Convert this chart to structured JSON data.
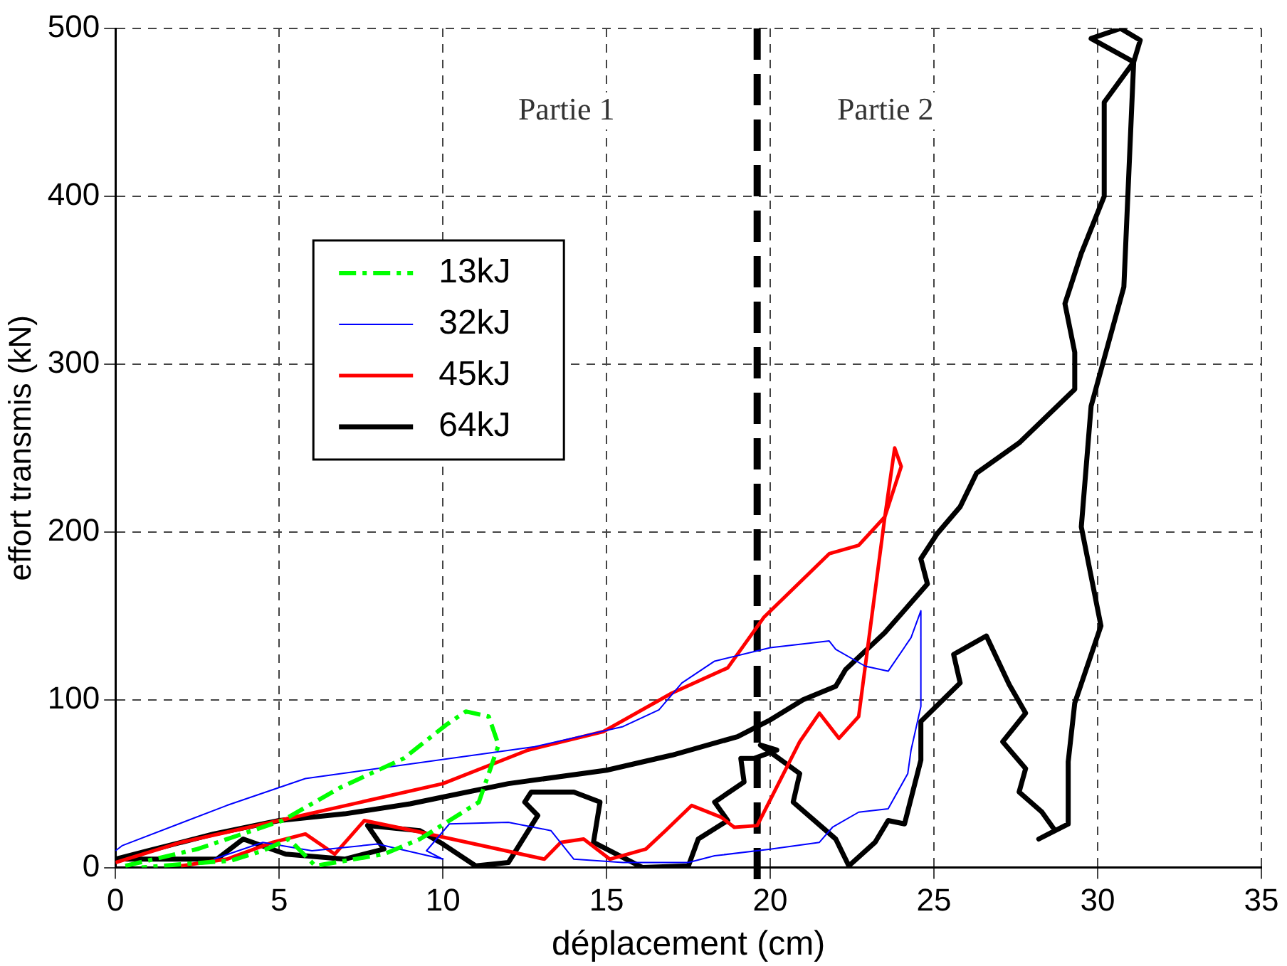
{
  "chart_data": {
    "type": "line",
    "xlabel": "déplacement (cm)",
    "ylabel": "effort transmis (kN)",
    "xlim": [
      0,
      35
    ],
    "xticks": [
      0,
      5,
      10,
      15,
      20,
      25,
      30,
      35
    ],
    "ylim": [
      0,
      500
    ],
    "yticks": [
      0,
      100,
      200,
      300,
      400,
      500
    ],
    "grid": true,
    "legend": "top left",
    "marker": "none",
    "series": [
      {
        "name": "13kJ",
        "color": "#00ff00",
        "line_style": "dashed",
        "x": [
          0.3,
          2.5,
          5.1,
          6.9,
          8.8,
          10.1,
          10.7,
          11.4,
          11.7,
          11.4,
          11.1,
          10.2,
          9.3,
          8.2,
          6.1,
          5.3,
          4.5,
          3.5,
          2.0,
          0.8
        ],
        "values": [
          1,
          11,
          28,
          48,
          65,
          85,
          93,
          90,
          73,
          56,
          39,
          28,
          17,
          8,
          1,
          17,
          10,
          4,
          2,
          0
        ]
      },
      {
        "name": "32kJ",
        "color": "#0000ff",
        "line_style": "solid",
        "x": [
          0,
          0.2,
          3.4,
          5.8,
          12.8,
          15.5,
          16.6,
          17.3,
          18.3,
          20.0,
          21.8,
          22.0,
          22.9,
          23.6,
          24.3,
          24.6,
          24.6,
          24.3,
          24.2,
          23.6,
          22.7,
          21.9,
          21.5,
          20.0,
          18.3,
          17.5,
          16.3,
          15.5,
          14.0,
          13.3,
          12.0,
          10.2,
          9.5,
          10.0,
          8.0,
          6.0,
          4.5,
          3.0
        ],
        "values": [
          10,
          13,
          37,
          53,
          72,
          84,
          94,
          110,
          123,
          131,
          135,
          130,
          120,
          117,
          137,
          153,
          96,
          70,
          56,
          35,
          33,
          24,
          15,
          11,
          7,
          3,
          3,
          3,
          5,
          22,
          27,
          26,
          10,
          5,
          14,
          10,
          15,
          5
        ]
      },
      {
        "name": "45kJ",
        "color": "#ff0000",
        "line_style": "solid",
        "x": [
          0,
          2,
          5,
          10,
          12.6,
          14.9,
          17.0,
          18.7,
          19.8,
          21.8,
          22.7,
          23.5,
          23.8,
          24.0,
          23.5,
          22.7,
          22.1,
          21.5,
          20.9,
          19.6,
          18.9,
          18.5,
          17.6,
          16.8,
          16.2,
          15.1,
          14.3,
          13.6,
          13.1,
          9.1,
          7.6,
          6.7,
          5.8,
          4.8,
          3.4,
          2.0
        ],
        "values": [
          3,
          15,
          28,
          50,
          70,
          81,
          104,
          119,
          149,
          187,
          192,
          209,
          250,
          239,
          209,
          90,
          77,
          92,
          75,
          25,
          24,
          30,
          37,
          22,
          11,
          5,
          17,
          15,
          5,
          22,
          28,
          8,
          20,
          15,
          5,
          1
        ]
      },
      {
        "name": "64kJ",
        "color": "#000000",
        "line_style": "solid",
        "x": [
          0,
          1,
          3,
          5,
          7,
          9,
          10,
          12,
          15,
          17,
          19,
          20,
          21,
          22,
          22.3,
          23.5,
          24.8,
          24.6,
          25.1,
          25.8,
          26.3,
          27.6,
          29.3,
          29.3,
          29.0,
          29.5,
          30.2,
          30.2,
          31.1,
          29.8,
          30.7,
          31.3,
          31.1,
          30.8,
          29.8,
          29.5,
          30.1,
          29.3,
          29.1,
          29.1,
          28.2,
          28.7,
          28.3,
          27.6,
          27.8,
          27.1,
          27.8,
          27.3,
          26.6,
          25.6,
          25.8,
          24.6,
          24.6,
          24.1,
          23.6,
          23.2,
          22.4,
          22.0,
          20.7,
          20.9,
          19.7,
          20.2,
          19.5,
          19.1,
          19.2,
          18.3,
          18.7,
          17.8,
          17.5,
          16.1,
          14.6,
          14.8,
          14.0,
          12.7,
          12.5,
          12.9,
          12.0,
          11.0,
          10.0,
          9.3,
          7.7,
          8.2,
          7.0,
          5.2,
          3.9,
          3.1,
          0.3
        ],
        "values": [
          5,
          10,
          20,
          28,
          32,
          38,
          42,
          50,
          58,
          67,
          78,
          88,
          100,
          108,
          118,
          140,
          169,
          184,
          199,
          215,
          235,
          253,
          285,
          307,
          336,
          366,
          400,
          456,
          480,
          494,
          500,
          493,
          480,
          346,
          275,
          203,
          144,
          98,
          63,
          26,
          17,
          22,
          33,
          45,
          59,
          75,
          92,
          109,
          138,
          127,
          110,
          87,
          64,
          26,
          28,
          15,
          1,
          17,
          39,
          56,
          73,
          70,
          65,
          65,
          51,
          39,
          28,
          17,
          1,
          0,
          15,
          39,
          45,
          45,
          39,
          31,
          3,
          1,
          14,
          22,
          25,
          11,
          5,
          8,
          17,
          5,
          5
        ]
      }
    ],
    "ref_lines": [
      {
        "axis": "x",
        "value": 19.6,
        "color": "#000000",
        "line_style": "dashed"
      }
    ],
    "annotations": [
      "Partie 1",
      "Partie 2"
    ]
  }
}
